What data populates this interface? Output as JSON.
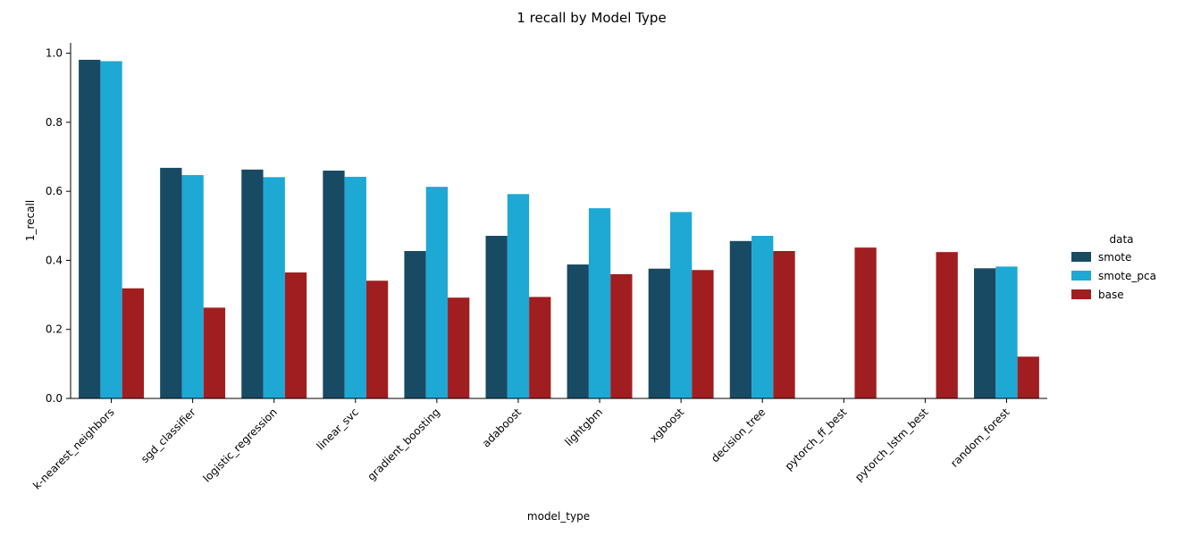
{
  "chart_data": {
    "type": "bar",
    "title": "1 recall by Model Type",
    "xlabel": "model_type",
    "ylabel": "1_recall",
    "ylim": [
      0,
      1.03
    ],
    "yticks": [
      "0.0",
      "0.2",
      "0.4",
      "0.6",
      "0.8",
      "1.0"
    ],
    "grid": false,
    "legend_placement": "right",
    "legend_title": "data",
    "categories": [
      "k-nearest_neighbors",
      "sgd_classifier",
      "logistic_regression",
      "linear_svc",
      "gradient_boosting",
      "adaboost",
      "lightgbm",
      "xgboost",
      "decision_tree",
      "pytorch_ff_best",
      "pytorch_lstm_best",
      "random_forest"
    ],
    "series": [
      {
        "name": "smote",
        "color": "#194a63",
        "values": [
          0.981,
          0.668,
          0.663,
          0.66,
          0.427,
          0.471,
          0.388,
          0.376,
          0.456,
          null,
          null,
          0.377
        ]
      },
      {
        "name": "smote_pca",
        "color": "#1ea8d4",
        "values": [
          0.977,
          0.647,
          0.641,
          0.642,
          0.613,
          0.592,
          0.551,
          0.54,
          0.471,
          null,
          null,
          0.382
        ]
      },
      {
        "name": "base",
        "color": "#a01e20",
        "values": [
          0.319,
          0.263,
          0.365,
          0.341,
          0.292,
          0.294,
          0.36,
          0.372,
          0.427,
          0.437,
          0.424,
          0.121
        ]
      }
    ]
  }
}
